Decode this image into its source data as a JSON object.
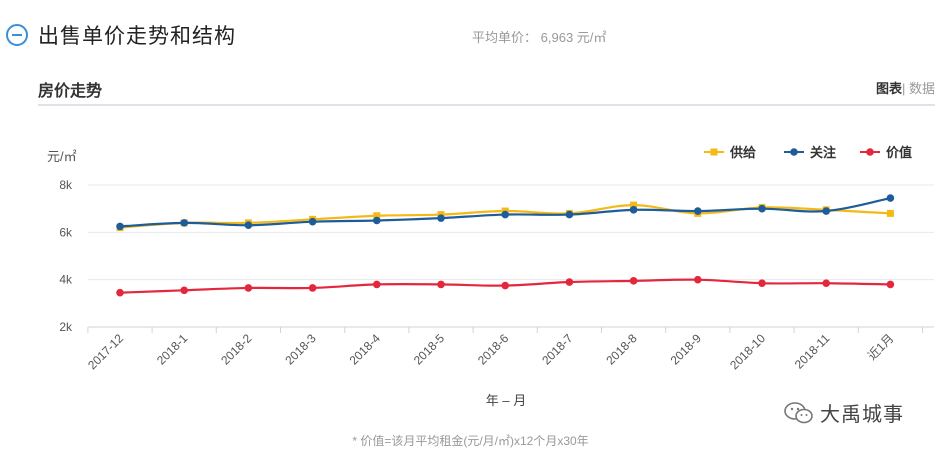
{
  "header": {
    "title": "出售单价走势和结构",
    "avg_price_label": "平均单价：",
    "avg_price_value": "6,963 元/㎡"
  },
  "panel": {
    "title": "房价走势",
    "view_chart": "图表",
    "view_separator": "|",
    "view_data": "数据"
  },
  "chart_data": {
    "type": "line",
    "ylabel": "元/㎡",
    "xlabel": "年 – 月",
    "ylim": [
      2000,
      8000
    ],
    "yticks": [
      2000,
      4000,
      6000,
      8000
    ],
    "ytick_labels": [
      "2k",
      "4k",
      "6k",
      "8k"
    ],
    "grid": true,
    "legend_position": "top-right",
    "categories": [
      "2017-12",
      "2018-1",
      "2018-2",
      "2018-3",
      "2018-4",
      "2018-5",
      "2018-6",
      "2018-7",
      "2018-8",
      "2018-9",
      "2018-10",
      "2018-11",
      "近1月"
    ],
    "series": [
      {
        "name": "供给",
        "color": "#f5b915",
        "marker": "square",
        "values": [
          6200,
          6400,
          6400,
          6550,
          6700,
          6750,
          6900,
          6800,
          7150,
          6800,
          7050,
          6950,
          6800
        ]
      },
      {
        "name": "关注",
        "color": "#1e5d9a",
        "marker": "circle",
        "values": [
          6250,
          6400,
          6300,
          6450,
          6500,
          6600,
          6750,
          6750,
          6950,
          6900,
          7000,
          6900,
          7450
        ]
      },
      {
        "name": "价值",
        "color": "#e3283e",
        "marker": "circle",
        "values": [
          3450,
          3550,
          3650,
          3650,
          3800,
          3800,
          3750,
          3900,
          3950,
          4000,
          3850,
          3850,
          3800
        ]
      }
    ]
  },
  "watermark": {
    "text": "大禹城事"
  },
  "footnote": "* 价值=该月平均租金(元/月/㎡)x12个月x30年"
}
